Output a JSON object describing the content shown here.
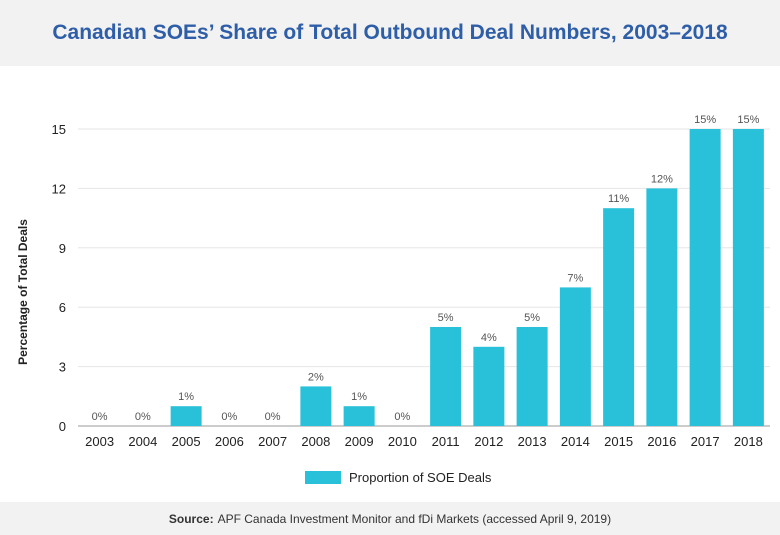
{
  "title": "Canadian SOEs’ Share of Total Outbound Deal Numbers, 2003–2018",
  "source": {
    "label": "Source:",
    "text": "APF Canada Investment Monitor and fDi Markets (accessed April 9, 2019)"
  },
  "colors": {
    "bar": "#29c0d9",
    "title": "#2e5ea8",
    "background_band": "#f2f2f2"
  },
  "chart_data": {
    "type": "bar",
    "title": "Canadian SOEs’ Share of Total Outbound Deal Numbers, 2003–2018",
    "xlabel": "",
    "ylabel": "Percentage of Total Deals",
    "categories": [
      "2003",
      "2004",
      "2005",
      "2006",
      "2007",
      "2008",
      "2009",
      "2010",
      "2011",
      "2012",
      "2013",
      "2014",
      "2015",
      "2016",
      "2017",
      "2018"
    ],
    "series": [
      {
        "name": "Proportion of SOE Deals",
        "values": [
          0,
          0,
          1,
          0,
          0,
          2,
          1,
          0,
          5,
          4,
          5,
          7,
          11,
          12,
          15,
          15
        ],
        "labels": [
          "0%",
          "0%",
          "1%",
          "0%",
          "0%",
          "2%",
          "1%",
          "0%",
          "5%",
          "4%",
          "5%",
          "7%",
          "11%",
          "12%",
          "15%",
          "15%"
        ]
      }
    ],
    "ylim": [
      0,
      15
    ],
    "yticks": [
      0,
      3,
      6,
      9,
      12,
      15
    ],
    "grid": true,
    "legend": "bottom-center"
  }
}
